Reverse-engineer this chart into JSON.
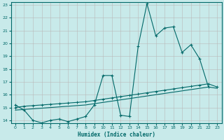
{
  "xlabel": "Humidex (Indice chaleur)",
  "bg_color": "#c8eaea",
  "grid_color": "#b8b8b8",
  "line_color": "#006868",
  "xlim": [
    -0.5,
    23.5
  ],
  "ylim": [
    13.8,
    23.2
  ],
  "yticks": [
    14,
    15,
    16,
    17,
    18,
    19,
    20,
    21,
    22,
    23
  ],
  "xticks": [
    0,
    1,
    2,
    3,
    4,
    5,
    6,
    7,
    8,
    9,
    10,
    11,
    12,
    13,
    14,
    15,
    16,
    17,
    18,
    19,
    20,
    21,
    22,
    23
  ],
  "line1_x": [
    0,
    1,
    2,
    3,
    4,
    5,
    6,
    7,
    8,
    9,
    10,
    11,
    12,
    13,
    14,
    15,
    16,
    17,
    18,
    19,
    20,
    21,
    22
  ],
  "line1_y": [
    15.2,
    14.8,
    14.0,
    13.8,
    14.0,
    14.1,
    13.9,
    14.1,
    14.3,
    15.2,
    17.5,
    17.5,
    14.4,
    14.3,
    19.8,
    23.1,
    20.6,
    21.2,
    21.3,
    19.3,
    19.9,
    18.8,
    16.6
  ],
  "line2_x": [
    0,
    1,
    2,
    3,
    4,
    5,
    6,
    7,
    8,
    9,
    10,
    11,
    12,
    13,
    14,
    15,
    16,
    17,
    18,
    19,
    20,
    21,
    22,
    23
  ],
  "line2_y": [
    15.0,
    15.1,
    15.15,
    15.2,
    15.25,
    15.3,
    15.35,
    15.4,
    15.45,
    15.55,
    15.65,
    15.75,
    15.85,
    15.95,
    16.05,
    16.15,
    16.25,
    16.35,
    16.45,
    16.55,
    16.65,
    16.75,
    16.85,
    16.6
  ],
  "line3_x": [
    0,
    1,
    2,
    3,
    4,
    5,
    6,
    7,
    8,
    9,
    10,
    11,
    12,
    13,
    14,
    15,
    16,
    17,
    18,
    19,
    20,
    21,
    22,
    23
  ],
  "line3_y": [
    14.8,
    14.85,
    14.9,
    14.95,
    15.0,
    15.05,
    15.1,
    15.15,
    15.2,
    15.3,
    15.4,
    15.5,
    15.6,
    15.7,
    15.8,
    15.9,
    16.0,
    16.1,
    16.2,
    16.3,
    16.4,
    16.5,
    16.6,
    16.5
  ]
}
